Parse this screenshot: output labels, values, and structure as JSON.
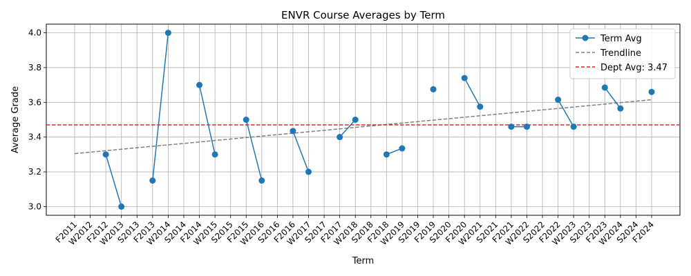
{
  "chart_data": {
    "type": "line",
    "title": "ENVR Course Averages by Term",
    "xlabel": "Term",
    "ylabel": "Average Grade",
    "ylim": [
      2.95,
      4.05
    ],
    "yticks": [
      "3.0",
      "3.2",
      "3.4",
      "3.6",
      "3.8",
      "4.0"
    ],
    "grid": true,
    "legend_position": "top-right",
    "categories": [
      "F2011",
      "W2012",
      "F2012",
      "W2013",
      "S2013",
      "F2013",
      "W2014",
      "S2014",
      "F2014",
      "W2015",
      "S2015",
      "F2015",
      "W2016",
      "S2016",
      "F2016",
      "W2017",
      "S2017",
      "F2017",
      "W2018",
      "S2018",
      "F2018",
      "W2019",
      "S2019",
      "F2019",
      "S2020",
      "F2020",
      "W2021",
      "S2021",
      "F2021",
      "W2022",
      "S2022",
      "F2022",
      "W2023",
      "S2023",
      "F2023",
      "W2024",
      "S2024",
      "F2024"
    ],
    "series": [
      {
        "name": "Term Avg",
        "color": "#1f77b4",
        "style": "solid-with-markers",
        "values": [
          null,
          null,
          3.3,
          3.0,
          null,
          3.15,
          4.0,
          null,
          3.7,
          3.3,
          null,
          3.5,
          3.15,
          null,
          3.435,
          3.2,
          null,
          3.4,
          3.5,
          null,
          3.3,
          3.335,
          null,
          3.675,
          null,
          3.74,
          3.575,
          null,
          3.46,
          3.46,
          null,
          3.615,
          3.46,
          null,
          3.685,
          3.565,
          null,
          3.66
        ]
      },
      {
        "name": "Trendline",
        "color": "#808080",
        "style": "dashed",
        "values_at_ends": [
          3.305,
          3.615
        ]
      },
      {
        "name": "Dept Avg: 3.47",
        "color": "#d62728",
        "style": "dashed-horizontal",
        "value": 3.47
      }
    ]
  }
}
